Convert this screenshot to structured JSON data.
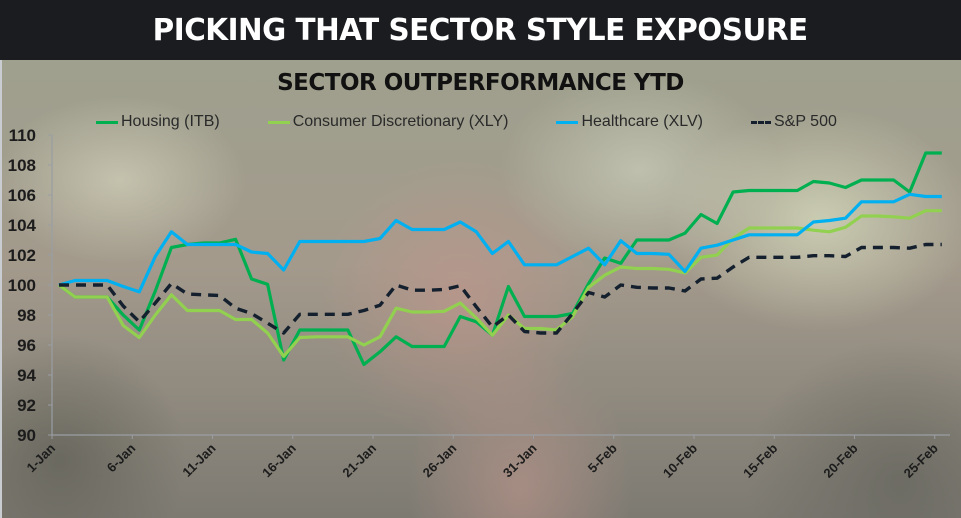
{
  "header": {
    "title": "PICKING THAT SECTOR STYLE EXPOSURE"
  },
  "colors": {
    "header_bg": "#1b1c1f",
    "housing": "#00b050",
    "consumer": "#92d050",
    "healthcare": "#00b0f0",
    "sp500": "#14202e",
    "axis": "#9a9ea4"
  },
  "chart_data": {
    "type": "line",
    "title": "SECTOR OUTPERFORMANCE YTD",
    "xlabel": "",
    "ylabel": "",
    "ylim": [
      90,
      110
    ],
    "yticks": [
      90,
      92,
      94,
      96,
      98,
      100,
      102,
      104,
      106,
      108,
      110
    ],
    "grid": false,
    "legend_position": "top",
    "x_tick_labels": [
      "1-Jan",
      "6-Jan",
      "11-Jan",
      "16-Jan",
      "21-Jan",
      "26-Jan",
      "31-Jan",
      "5-Feb",
      "10-Feb",
      "15-Feb",
      "20-Feb",
      "25-Feb"
    ],
    "x": [
      "1-Jan",
      "2-Jan",
      "3-Jan",
      "4-Jan",
      "5-Jan",
      "6-Jan",
      "7-Jan",
      "8-Jan",
      "9-Jan",
      "10-Jan",
      "11-Jan",
      "12-Jan",
      "13-Jan",
      "14-Jan",
      "15-Jan",
      "16-Jan",
      "17-Jan",
      "18-Jan",
      "19-Jan",
      "20-Jan",
      "21-Jan",
      "22-Jan",
      "23-Jan",
      "24-Jan",
      "25-Jan",
      "26-Jan",
      "27-Jan",
      "28-Jan",
      "29-Jan",
      "30-Jan",
      "31-Jan",
      "1-Feb",
      "2-Feb",
      "3-Feb",
      "4-Feb",
      "5-Feb",
      "6-Feb",
      "7-Feb",
      "8-Feb",
      "9-Feb",
      "10-Feb",
      "11-Feb",
      "12-Feb",
      "13-Feb",
      "14-Feb",
      "15-Feb",
      "16-Feb",
      "17-Feb",
      "18-Feb",
      "19-Feb",
      "20-Feb",
      "21-Feb",
      "22-Feb",
      "23-Feb",
      "24-Feb",
      "25-Feb"
    ],
    "series": [
      {
        "name": "Housing (ITB)",
        "style": "solid",
        "colorKey": "housing",
        "values": [
          100,
          99.2,
          99.2,
          99.2,
          98.0,
          97.0,
          99.6,
          102.5,
          102.7,
          102.8,
          102.8,
          103.05,
          100.4,
          100.05,
          95.0,
          97.0,
          97.0,
          97.0,
          97.0,
          94.7,
          95.55,
          96.55,
          95.9,
          95.9,
          95.9,
          97.9,
          97.55,
          96.65,
          99.9,
          97.9,
          97.9,
          97.9,
          98.1,
          100.1,
          101.8,
          101.45,
          103.0,
          103.0,
          103.0,
          103.45,
          104.7,
          104.1,
          106.2,
          106.3,
          106.3,
          106.3,
          106.3,
          106.9,
          106.8,
          106.5,
          107.0,
          107.0,
          107.0,
          106.2,
          108.8,
          108.8
        ]
      },
      {
        "name": "Consumer Discretionary (XLY)",
        "style": "solid",
        "colorKey": "consumer",
        "values": [
          100,
          99.2,
          99.2,
          99.2,
          97.3,
          96.5,
          98.0,
          99.35,
          98.3,
          98.3,
          98.3,
          97.7,
          97.7,
          96.8,
          95.25,
          96.5,
          96.55,
          96.55,
          96.55,
          96.0,
          96.55,
          98.45,
          98.2,
          98.2,
          98.25,
          98.8,
          97.8,
          96.65,
          98.0,
          97.1,
          97.1,
          97.0,
          97.9,
          99.85,
          100.65,
          101.2,
          101.1,
          101.1,
          101.05,
          100.8,
          101.85,
          102.0,
          103.1,
          103.8,
          103.8,
          103.8,
          103.8,
          103.65,
          103.55,
          103.85,
          104.6,
          104.6,
          104.55,
          104.45,
          104.95,
          104.95
        ]
      },
      {
        "name": "Healthcare (XLV)",
        "style": "solid",
        "colorKey": "healthcare",
        "values": [
          100,
          100.3,
          100.3,
          100.3,
          99.9,
          99.55,
          101.9,
          103.55,
          102.7,
          102.7,
          102.7,
          102.7,
          102.2,
          102.1,
          101.0,
          102.9,
          102.9,
          102.9,
          102.9,
          102.9,
          103.1,
          104.3,
          103.7,
          103.7,
          103.7,
          104.2,
          103.55,
          102.1,
          102.9,
          101.35,
          101.35,
          101.35,
          101.9,
          102.45,
          101.35,
          102.95,
          102.1,
          102.1,
          102.05,
          100.9,
          102.45,
          102.65,
          103.0,
          103.35,
          103.35,
          103.35,
          103.35,
          104.2,
          104.3,
          104.45,
          105.55,
          105.55,
          105.55,
          106.05,
          105.9,
          105.9
        ]
      },
      {
        "name": "S&P 500",
        "style": "dashed",
        "colorKey": "sp500",
        "values": [
          100,
          100,
          100,
          100,
          98.6,
          97.55,
          98.8,
          100.1,
          99.4,
          99.35,
          99.3,
          98.45,
          98.1,
          97.45,
          96.8,
          98.05,
          98.05,
          98.05,
          98.05,
          98.3,
          98.65,
          100.0,
          99.65,
          99.65,
          99.7,
          99.95,
          98.55,
          97.2,
          98.0,
          96.9,
          96.8,
          96.8,
          98.1,
          99.5,
          99.2,
          100.0,
          99.85,
          99.8,
          99.8,
          99.6,
          100.4,
          100.45,
          101.2,
          101.85,
          101.85,
          101.85,
          101.85,
          101.95,
          101.95,
          101.9,
          102.5,
          102.5,
          102.5,
          102.45,
          102.7,
          102.7
        ]
      }
    ]
  },
  "legend": {
    "items": [
      {
        "label": "Housing (ITB)"
      },
      {
        "label": "Consumer Discretionary (XLY)"
      },
      {
        "label": "Healthcare (XLV)"
      },
      {
        "label": "S&P 500"
      }
    ]
  }
}
